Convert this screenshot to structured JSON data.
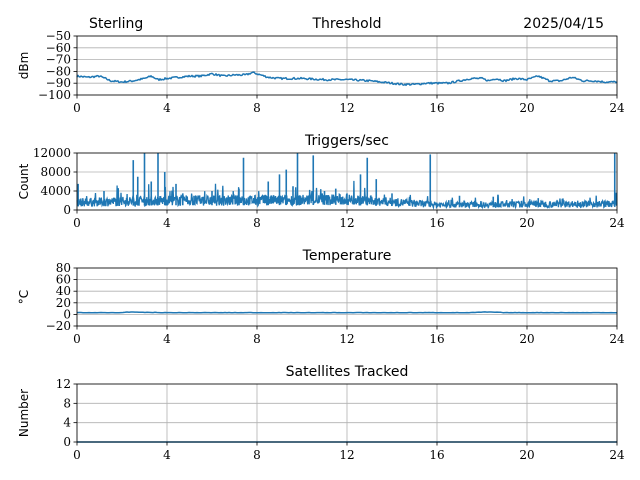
{
  "header": {
    "station": "Sterling",
    "date": "2025/04/15"
  },
  "colors": {
    "series": "#1f77b4",
    "grid": "#b0b0b0"
  },
  "chart_data": [
    {
      "type": "line",
      "title": "Threshold",
      "ylabel": "dBm",
      "xlabel": "",
      "xlim": [
        0,
        24
      ],
      "ylim": [
        -100,
        -50
      ],
      "xticks": [
        0,
        4,
        8,
        12,
        16,
        20,
        24
      ],
      "yticks": [
        -100,
        -90,
        -80,
        -70,
        -60,
        -50
      ],
      "ytick_labels": [
        "−100",
        "−90",
        "−80",
        "−70",
        "−60",
        "−50"
      ],
      "grid": true,
      "series": [
        {
          "x": [
            0,
            0.5,
            1,
            1.5,
            2,
            2.5,
            3,
            3.3,
            3.6,
            4,
            4.5,
            5,
            5.5,
            6,
            6.5,
            7,
            7.5,
            7.8,
            8,
            8.5,
            9,
            9.5,
            10,
            11,
            12,
            13,
            14,
            14.5,
            15,
            15.5,
            16,
            16.5,
            17,
            17.5,
            18,
            18.3,
            18.6,
            19,
            19.5,
            20,
            20.5,
            21,
            21.5,
            22,
            22.5,
            23,
            23.5,
            24
          ],
          "values": [
            -84,
            -85,
            -84,
            -88,
            -89,
            -88,
            -86,
            -84,
            -87,
            -86,
            -85,
            -84,
            -84,
            -82,
            -84,
            -83,
            -83,
            -81,
            -82,
            -85,
            -86,
            -86,
            -86,
            -87,
            -87,
            -88,
            -90,
            -91,
            -91,
            -90,
            -90,
            -90,
            -88,
            -86,
            -86,
            -88,
            -86,
            -88,
            -86,
            -87,
            -84,
            -88,
            -88,
            -85,
            -88,
            -88,
            -89,
            -89
          ]
        }
      ]
    },
    {
      "type": "line",
      "title": "Triggers/sec",
      "ylabel": "Count",
      "xlabel": "",
      "xlim": [
        0,
        24
      ],
      "ylim": [
        0,
        12000
      ],
      "xticks": [
        0,
        4,
        8,
        12,
        16,
        20,
        24
      ],
      "yticks": [
        0,
        4000,
        8000,
        12000
      ],
      "grid": true,
      "baseline": {
        "x": [
          0,
          4,
          8,
          12,
          15,
          16,
          20,
          24
        ],
        "values": [
          1600,
          2000,
          2000,
          2200,
          1400,
          1100,
          1200,
          1300
        ]
      },
      "spikes": [
        {
          "x": 0.05,
          "value": 5500
        },
        {
          "x": 1.2,
          "value": 4000
        },
        {
          "x": 1.8,
          "value": 4500
        },
        {
          "x": 2.5,
          "value": 10500
        },
        {
          "x": 2.7,
          "value": 7000
        },
        {
          "x": 3.0,
          "value": 12000
        },
        {
          "x": 3.3,
          "value": 6000
        },
        {
          "x": 3.6,
          "value": 12000
        },
        {
          "x": 3.9,
          "value": 8000
        },
        {
          "x": 4.4,
          "value": 5500
        },
        {
          "x": 4.7,
          "value": 3500
        },
        {
          "x": 5.2,
          "value": 3000
        },
        {
          "x": 6.0,
          "value": 4000
        },
        {
          "x": 7.2,
          "value": 4500
        },
        {
          "x": 7.4,
          "value": 11000
        },
        {
          "x": 8.5,
          "value": 6000
        },
        {
          "x": 9.0,
          "value": 7500
        },
        {
          "x": 9.3,
          "value": 8500
        },
        {
          "x": 9.6,
          "value": 5000
        },
        {
          "x": 9.8,
          "value": 12000
        },
        {
          "x": 10.5,
          "value": 11500
        },
        {
          "x": 11.0,
          "value": 4000
        },
        {
          "x": 11.5,
          "value": 4500
        },
        {
          "x": 12.0,
          "value": 3500
        },
        {
          "x": 12.6,
          "value": 7500
        },
        {
          "x": 12.9,
          "value": 11000
        },
        {
          "x": 13.3,
          "value": 6500
        },
        {
          "x": 14.0,
          "value": 3500
        },
        {
          "x": 15.7,
          "value": 11700
        },
        {
          "x": 17.0,
          "value": 3000
        },
        {
          "x": 18.5,
          "value": 2800
        },
        {
          "x": 20.5,
          "value": 2500
        },
        {
          "x": 23.9,
          "value": 12000
        }
      ]
    },
    {
      "type": "line",
      "title": "Temperature",
      "ylabel": "°C",
      "xlabel": "",
      "xlim": [
        0,
        24
      ],
      "ylim": [
        -20,
        80
      ],
      "xticks": [
        0,
        4,
        8,
        12,
        16,
        20,
        24
      ],
      "yticks": [
        -20,
        0,
        20,
        40,
        60,
        80
      ],
      "ytick_labels": [
        "−20",
        "0",
        "20",
        "40",
        "60",
        "80"
      ],
      "grid": true,
      "series": [
        {
          "x": [
            0,
            2,
            2.1,
            4,
            8,
            12,
            16,
            17.5,
            18,
            18.5,
            19,
            24
          ],
          "values": [
            3,
            3,
            4,
            3,
            3,
            3,
            3,
            3,
            4,
            4,
            3,
            3
          ]
        }
      ]
    },
    {
      "type": "line",
      "title": "Satellites Tracked",
      "ylabel": "Number",
      "xlabel": "",
      "xlim": [
        0,
        24
      ],
      "ylim": [
        0,
        12
      ],
      "xticks": [
        0,
        4,
        8,
        12,
        16,
        20,
        24
      ],
      "yticks": [
        0,
        4,
        8,
        12
      ],
      "grid": true,
      "series": [
        {
          "x": [
            0,
            24
          ],
          "values": [
            0,
            0
          ]
        }
      ]
    }
  ]
}
